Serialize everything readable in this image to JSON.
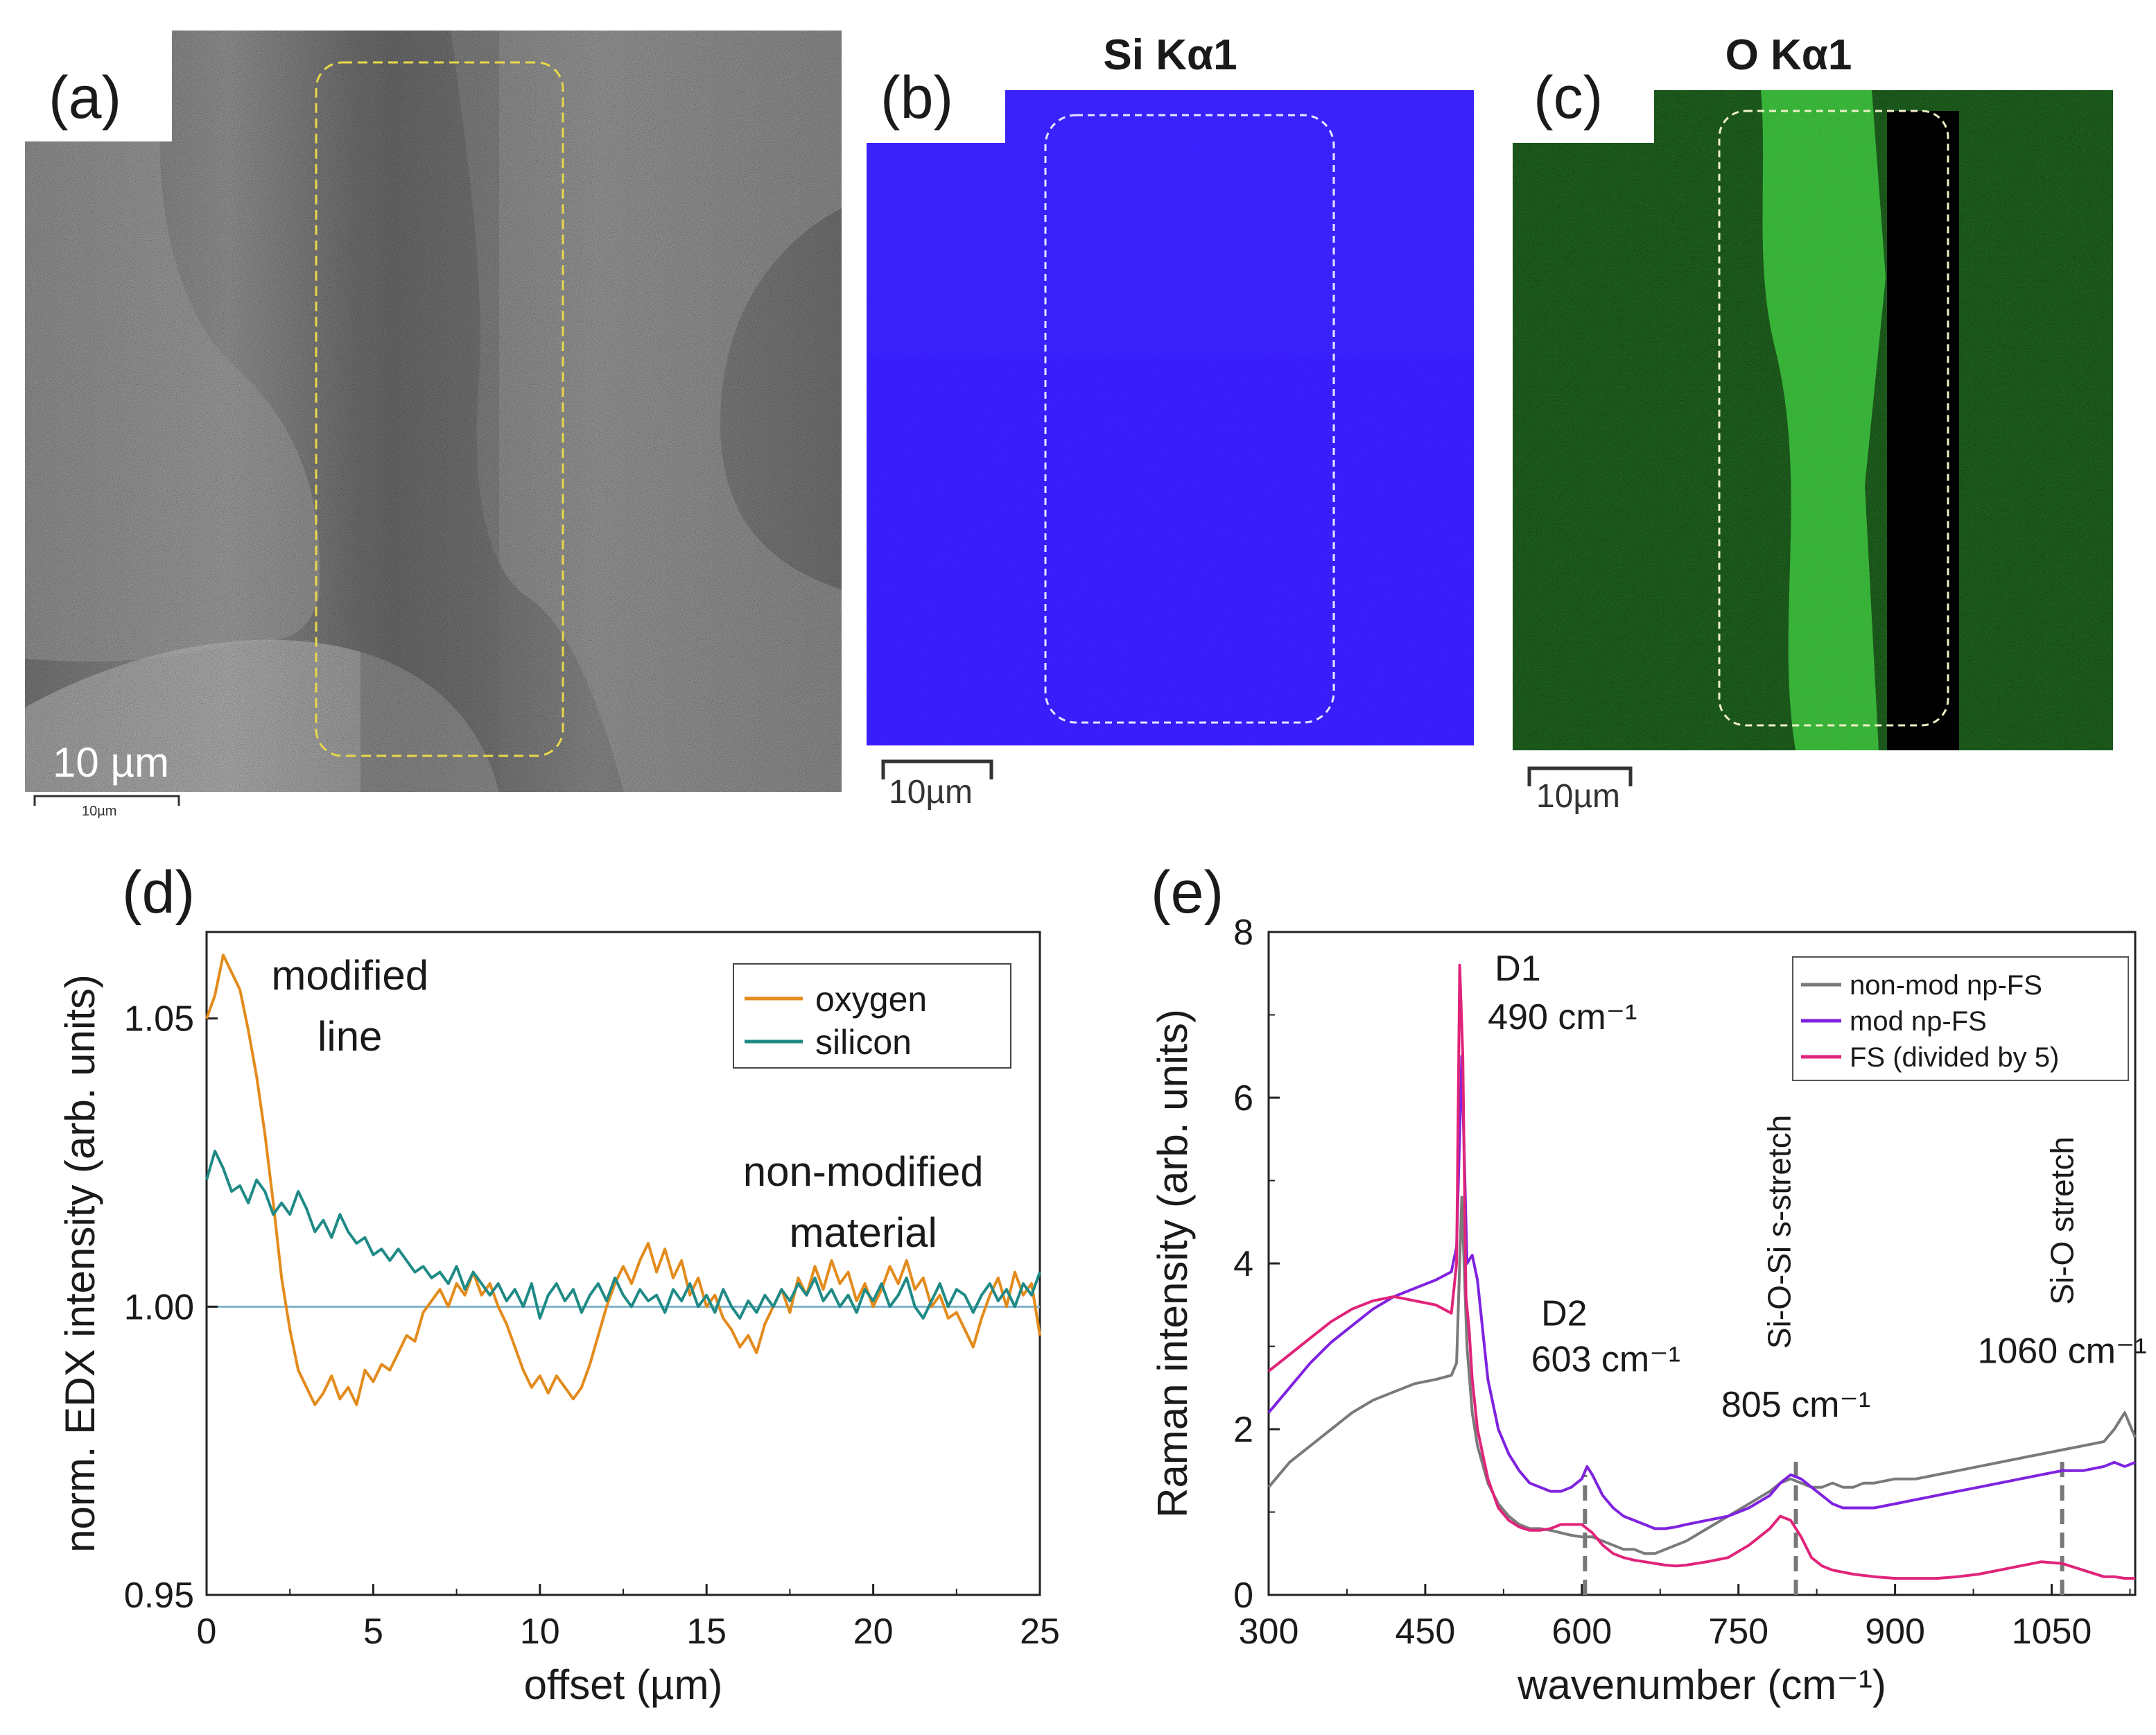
{
  "panels": {
    "a": {
      "label": "(a)",
      "scale_text": "10 µm",
      "scale_small_text": "10µm"
    },
    "b": {
      "label": "(b)",
      "title": "Si Kα1",
      "scale_text": "10µm"
    },
    "c": {
      "label": "(c)",
      "title": "O Kα1",
      "scale_text": "10µm"
    },
    "d": {
      "label": "(d)"
    },
    "e": {
      "label": "(e)"
    }
  },
  "colors": {
    "oxygen": "#e38b1c",
    "silicon": "#1f8a86",
    "baseline": "#7fb3c8",
    "nonmod": "#7a7a7a",
    "mod": "#7f22e0",
    "fs": "#e0247a",
    "si_map": "#3a1fff",
    "o_map": "#39e63a"
  },
  "chart_data": [
    {
      "id": "d",
      "type": "line",
      "title": "",
      "xlabel": "offset (µm)",
      "ylabel": "norm. EDX intensity (arb. units)",
      "xlim": [
        0,
        25
      ],
      "ylim": [
        0.95,
        1.065
      ],
      "xticks": [
        0,
        5,
        10,
        15,
        20,
        25
      ],
      "xtick_labels": [
        "0",
        "5",
        "10",
        "15",
        "20",
        "25"
      ],
      "yticks": [
        0.95,
        1.0,
        1.05
      ],
      "ytick_labels": [
        "0.95",
        "1.00",
        "1.05"
      ],
      "baseline": 1.0,
      "legend": [
        "oxygen",
        "silicon"
      ],
      "legend_position": "top-right",
      "annotations": [
        {
          "lines": [
            "modified",
            "line"
          ],
          "x": 4.3,
          "y": 1.055
        },
        {
          "lines": [
            "non-modified",
            "material"
          ],
          "x": 19.7,
          "y": 1.021
        }
      ],
      "series": [
        {
          "name": "oxygen",
          "color": "#e38b1c",
          "x": [
            0,
            0.25,
            0.5,
            0.75,
            1,
            1.25,
            1.5,
            1.75,
            2,
            2.25,
            2.5,
            2.75,
            3,
            3.25,
            3.5,
            3.75,
            4,
            4.25,
            4.5,
            4.75,
            5,
            5.25,
            5.5,
            5.75,
            6,
            6.25,
            6.5,
            6.75,
            7,
            7.25,
            7.5,
            7.75,
            8,
            8.25,
            8.5,
            8.75,
            9,
            9.25,
            9.5,
            9.75,
            10,
            10.25,
            10.5,
            10.75,
            11,
            11.25,
            11.5,
            11.75,
            12,
            12.25,
            12.5,
            12.75,
            13,
            13.25,
            13.5,
            13.75,
            14,
            14.25,
            14.5,
            14.75,
            15,
            15.25,
            15.5,
            15.75,
            16,
            16.25,
            16.5,
            16.75,
            17,
            17.25,
            17.5,
            17.75,
            18,
            18.25,
            18.5,
            18.75,
            19,
            19.25,
            19.5,
            19.75,
            20,
            20.25,
            20.5,
            20.75,
            21,
            21.25,
            21.5,
            21.75,
            22,
            22.25,
            22.5,
            22.75,
            23,
            23.25,
            23.5,
            23.75,
            24,
            24.25,
            24.5,
            24.75,
            25
          ],
          "values": [
            1.05,
            1.054,
            1.061,
            1.058,
            1.055,
            1.048,
            1.04,
            1.03,
            1.018,
            1.005,
            0.996,
            0.989,
            0.986,
            0.983,
            0.985,
            0.988,
            0.984,
            0.986,
            0.983,
            0.989,
            0.987,
            0.99,
            0.989,
            0.992,
            0.995,
            0.994,
            0.999,
            1.001,
            1.003,
            1.0,
            1.004,
            1.002,
            1.006,
            1.002,
            1.004,
            1.0,
            0.997,
            0.993,
            0.989,
            0.986,
            0.988,
            0.985,
            0.988,
            0.986,
            0.984,
            0.986,
            0.99,
            0.995,
            1.0,
            1.004,
            1.007,
            1.004,
            1.008,
            1.011,
            1.006,
            1.01,
            1.005,
            1.008,
            1.002,
            1.005,
            1.0,
            1.002,
            0.998,
            0.996,
            0.993,
            0.995,
            0.992,
            0.997,
            1.0,
            1.003,
            0.999,
            1.005,
            1.002,
            1.007,
            1.003,
            1.008,
            1.004,
            1.006,
            1.001,
            1.004,
            1.0,
            1.003,
            1.007,
            1.004,
            1.008,
            1.003,
            1.005,
            1.0,
            1.002,
            0.998,
            0.999,
            0.996,
            0.993,
            0.998,
            1.002,
            1.005,
            1.0,
            1.006,
            1.002,
            1.004,
            0.995
          ]
        },
        {
          "name": "silicon",
          "color": "#1f8a86",
          "x": [
            0,
            0.25,
            0.5,
            0.75,
            1,
            1.25,
            1.5,
            1.75,
            2,
            2.25,
            2.5,
            2.75,
            3,
            3.25,
            3.5,
            3.75,
            4,
            4.25,
            4.5,
            4.75,
            5,
            5.25,
            5.5,
            5.75,
            6,
            6.25,
            6.5,
            6.75,
            7,
            7.25,
            7.5,
            7.75,
            8,
            8.25,
            8.5,
            8.75,
            9,
            9.25,
            9.5,
            9.75,
            10,
            10.25,
            10.5,
            10.75,
            11,
            11.25,
            11.5,
            11.75,
            12,
            12.25,
            12.5,
            12.75,
            13,
            13.25,
            13.5,
            13.75,
            14,
            14.25,
            14.5,
            14.75,
            15,
            15.25,
            15.5,
            15.75,
            16,
            16.25,
            16.5,
            16.75,
            17,
            17.25,
            17.5,
            17.75,
            18,
            18.25,
            18.5,
            18.75,
            19,
            19.25,
            19.5,
            19.75,
            20,
            20.25,
            20.5,
            20.75,
            21,
            21.25,
            21.5,
            21.75,
            22,
            22.25,
            22.5,
            22.75,
            23,
            23.25,
            23.5,
            23.75,
            24,
            24.25,
            24.5,
            24.75,
            25
          ],
          "values": [
            1.022,
            1.027,
            1.024,
            1.02,
            1.021,
            1.018,
            1.022,
            1.02,
            1.016,
            1.018,
            1.016,
            1.02,
            1.017,
            1.013,
            1.015,
            1.012,
            1.016,
            1.013,
            1.011,
            1.012,
            1.009,
            1.01,
            1.008,
            1.01,
            1.008,
            1.006,
            1.007,
            1.005,
            1.006,
            1.004,
            1.007,
            1.003,
            1.006,
            1.004,
            1.002,
            1.004,
            1.001,
            1.003,
            1.0,
            1.004,
            0.998,
            1.002,
            1.004,
            1.001,
            1.003,
            0.999,
            1.002,
            1.004,
            1.001,
            1.005,
            1.002,
            1.0,
            1.003,
            1.001,
            1.002,
            0.999,
            1.003,
            1.001,
            1.004,
            1.0,
            1.002,
            0.999,
            1.003,
            1.0,
            0.998,
            1.001,
            0.999,
            1.002,
            1.0,
            1.003,
            1.001,
            1.004,
            1.002,
            1.005,
            1.001,
            1.003,
            1.0,
            1.002,
            0.999,
            1.003,
            1.001,
            1.004,
            1.0,
            1.002,
            1.005,
            1.0,
            0.998,
            1.001,
            1.004,
            1.0,
            1.003,
            1.002,
            0.999,
            1.002,
            1.004,
            1.001,
            1.003,
            1.0,
            1.004,
            1.002,
            1.006
          ]
        }
      ]
    },
    {
      "id": "e",
      "type": "line",
      "title": "",
      "xlabel": "wavenumber (cm⁻¹)",
      "ylabel": "Raman intensity (arb. units)",
      "xlim": [
        300,
        1130
      ],
      "ylim": [
        0,
        8
      ],
      "xticks": [
        300,
        450,
        600,
        750,
        900,
        1050
      ],
      "xtick_labels": [
        "300",
        "450",
        "600",
        "750",
        "900",
        "1050"
      ],
      "yticks": [
        0,
        2,
        4,
        6,
        8
      ],
      "ytick_labels": [
        "0",
        "2",
        "4",
        "6",
        "8"
      ],
      "legend": [
        "non-mod np-FS",
        "mod np-FS",
        "FS (divided by 5)"
      ],
      "legend_position": "top-right",
      "annotations": [
        {
          "name": "d1-label",
          "lines": [
            "D1",
            "490 cm⁻¹"
          ]
        },
        {
          "name": "d2-label",
          "lines": [
            "D2",
            "603 cm⁻¹"
          ]
        },
        {
          "name": "sio-label",
          "lines": [
            "Si-O-Si s-stretch",
            "805 cm⁻¹"
          ]
        },
        {
          "name": "sio-stretch-label",
          "lines": [
            "Si-O stretch",
            "1060 cm⁻¹"
          ]
        }
      ],
      "reference_lines": [
        603,
        805,
        1060
      ],
      "series": [
        {
          "name": "non-mod np-FS",
          "color": "#7a7a7a",
          "x": [
            300,
            320,
            340,
            360,
            380,
            400,
            420,
            440,
            460,
            475,
            480,
            485,
            490,
            495,
            500,
            510,
            520,
            530,
            540,
            550,
            560,
            570,
            580,
            590,
            600,
            610,
            620,
            630,
            640,
            650,
            660,
            670,
            680,
            690,
            700,
            720,
            740,
            760,
            780,
            790,
            800,
            810,
            820,
            830,
            840,
            850,
            860,
            870,
            880,
            900,
            920,
            940,
            960,
            980,
            1000,
            1020,
            1040,
            1060,
            1080,
            1100,
            1110,
            1120,
            1130
          ],
          "values": [
            1.3,
            1.6,
            1.8,
            2.0,
            2.2,
            2.35,
            2.45,
            2.55,
            2.6,
            2.65,
            2.8,
            4.8,
            3.0,
            2.2,
            1.8,
            1.35,
            1.1,
            0.95,
            0.85,
            0.8,
            0.8,
            0.78,
            0.75,
            0.72,
            0.7,
            0.7,
            0.65,
            0.6,
            0.55,
            0.55,
            0.5,
            0.5,
            0.55,
            0.6,
            0.65,
            0.8,
            0.95,
            1.1,
            1.25,
            1.35,
            1.4,
            1.35,
            1.3,
            1.3,
            1.35,
            1.3,
            1.3,
            1.35,
            1.35,
            1.4,
            1.4,
            1.45,
            1.5,
            1.55,
            1.6,
            1.65,
            1.7,
            1.75,
            1.8,
            1.85,
            2.0,
            2.2,
            1.9
          ]
        },
        {
          "name": "mod np-FS",
          "color": "#7f22e0",
          "x": [
            300,
            320,
            340,
            360,
            380,
            400,
            420,
            440,
            460,
            475,
            480,
            485,
            490,
            495,
            500,
            505,
            510,
            520,
            530,
            540,
            550,
            560,
            570,
            580,
            590,
            600,
            605,
            610,
            620,
            630,
            640,
            650,
            660,
            670,
            680,
            690,
            700,
            720,
            740,
            760,
            780,
            790,
            800,
            810,
            820,
            830,
            840,
            850,
            860,
            870,
            880,
            900,
            920,
            940,
            960,
            980,
            1000,
            1020,
            1040,
            1060,
            1080,
            1100,
            1110,
            1120,
            1130
          ],
          "values": [
            2.2,
            2.5,
            2.8,
            3.05,
            3.25,
            3.45,
            3.6,
            3.7,
            3.8,
            3.9,
            4.2,
            6.5,
            4.0,
            4.1,
            3.8,
            3.2,
            2.6,
            2.0,
            1.7,
            1.5,
            1.35,
            1.3,
            1.25,
            1.25,
            1.3,
            1.4,
            1.55,
            1.45,
            1.2,
            1.05,
            0.95,
            0.9,
            0.85,
            0.8,
            0.8,
            0.82,
            0.85,
            0.9,
            0.95,
            1.05,
            1.2,
            1.35,
            1.45,
            1.4,
            1.3,
            1.2,
            1.1,
            1.05,
            1.05,
            1.05,
            1.05,
            1.1,
            1.15,
            1.2,
            1.25,
            1.3,
            1.35,
            1.4,
            1.45,
            1.5,
            1.5,
            1.55,
            1.6,
            1.55,
            1.6
          ]
        },
        {
          "name": "FS (divided by 5)",
          "color": "#e0247a",
          "x": [
            300,
            320,
            340,
            360,
            380,
            400,
            420,
            440,
            460,
            475,
            480,
            483,
            486,
            489,
            492,
            495,
            500,
            510,
            520,
            530,
            540,
            550,
            560,
            570,
            580,
            590,
            600,
            605,
            610,
            620,
            630,
            640,
            650,
            660,
            670,
            680,
            690,
            700,
            720,
            740,
            760,
            780,
            790,
            800,
            810,
            820,
            830,
            840,
            860,
            880,
            900,
            920,
            940,
            960,
            980,
            1000,
            1020,
            1040,
            1060,
            1080,
            1100,
            1110,
            1120,
            1130
          ],
          "values": [
            2.7,
            2.9,
            3.1,
            3.3,
            3.45,
            3.55,
            3.6,
            3.55,
            3.5,
            3.4,
            4.0,
            7.6,
            6.5,
            3.6,
            3.2,
            2.6,
            2.0,
            1.4,
            1.05,
            0.9,
            0.82,
            0.78,
            0.78,
            0.8,
            0.85,
            0.85,
            0.85,
            0.8,
            0.75,
            0.6,
            0.5,
            0.45,
            0.42,
            0.4,
            0.38,
            0.36,
            0.35,
            0.36,
            0.4,
            0.45,
            0.6,
            0.8,
            0.95,
            0.9,
            0.7,
            0.45,
            0.35,
            0.3,
            0.25,
            0.22,
            0.2,
            0.2,
            0.2,
            0.22,
            0.25,
            0.3,
            0.35,
            0.4,
            0.38,
            0.3,
            0.22,
            0.22,
            0.2,
            0.2
          ]
        }
      ]
    }
  ]
}
